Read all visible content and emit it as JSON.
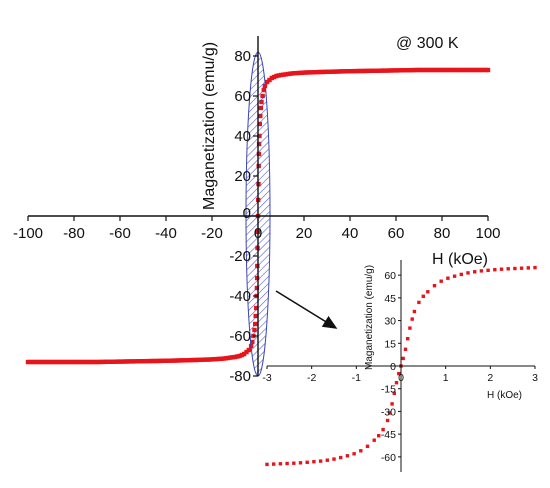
{
  "chart_data": [
    {
      "type": "scatter",
      "role": "main",
      "title": "",
      "annotation": "@ 300 K",
      "xlabel": "H (kOe)",
      "ylabel": "Maganetization (emu/g)",
      "xlim": [
        -100,
        100
      ],
      "ylim": [
        -80,
        90
      ],
      "xticks": [
        -100,
        -80,
        -60,
        -40,
        -20,
        0,
        20,
        40,
        60,
        80,
        100
      ],
      "yticks": [
        -80,
        -60,
        -40,
        -20,
        0,
        20,
        40,
        60,
        80
      ],
      "color": "#e8141c",
      "highlight_color": "#3b45b8",
      "grid": false,
      "series": [
        {
          "x": [
            -100,
            -90,
            -80,
            -70,
            -60,
            -50,
            -40,
            -30,
            -20,
            -15,
            -10,
            -8,
            -6,
            -5,
            -4,
            -3,
            -2.5,
            -2,
            -1.5,
            -1.2,
            -1,
            -0.8,
            -0.6,
            -0.5,
            -0.4,
            -0.3,
            -0.2,
            -0.1,
            0,
            0.1,
            0.2,
            0.3,
            0.4,
            0.5,
            0.6,
            0.8,
            1,
            1.2,
            1.5,
            2,
            2.5,
            3,
            4,
            5,
            6,
            8,
            10,
            15,
            20,
            30,
            40,
            50,
            60,
            70,
            80,
            90,
            100
          ],
          "y": [
            -73,
            -73,
            -73,
            -73,
            -72.8,
            -72.6,
            -72.4,
            -72.1,
            -71.7,
            -71.3,
            -70.5,
            -70,
            -69,
            -68,
            -67,
            -65,
            -63,
            -60,
            -57,
            -54,
            -50,
            -46,
            -40,
            -36,
            -31,
            -25,
            -16,
            -8,
            0,
            8,
            16,
            25,
            31,
            36,
            40,
            46,
            50,
            54,
            57,
            60,
            63,
            65,
            67,
            68,
            69,
            70,
            70.5,
            71.3,
            71.7,
            72.1,
            72.4,
            72.6,
            72.8,
            73,
            73,
            73,
            73
          ]
        }
      ]
    },
    {
      "type": "scatter",
      "role": "inset",
      "title": "",
      "xlabel": "H (kOe)",
      "ylabel": "Maganetization (emu/g)",
      "xlim": [
        -3,
        3
      ],
      "ylim": [
        -70,
        70
      ],
      "xticks": [
        -3,
        -2,
        -1,
        0,
        1,
        2,
        3
      ],
      "yticks": [
        -60,
        -45,
        -30,
        -15,
        0,
        15,
        30,
        45,
        60
      ],
      "color": "#e8141c",
      "series": [
        {
          "x": [
            -3,
            -2.85,
            -2.7,
            -2.55,
            -2.4,
            -2.25,
            -2.1,
            -1.95,
            -1.8,
            -1.65,
            -1.5,
            -1.35,
            -1.2,
            -1.05,
            -0.9,
            -0.75,
            -0.6,
            -0.5,
            -0.4,
            -0.3,
            -0.25,
            -0.2,
            -0.15,
            -0.1,
            -0.05,
            0,
            0.05,
            0.1,
            0.15,
            0.2,
            0.25,
            0.3,
            0.4,
            0.5,
            0.6,
            0.75,
            0.9,
            1.05,
            1.2,
            1.35,
            1.5,
            1.65,
            1.8,
            1.95,
            2.1,
            2.25,
            2.4,
            2.55,
            2.7,
            2.85,
            3
          ],
          "y": [
            -65,
            -64.8,
            -64.6,
            -64.4,
            -64.2,
            -63.9,
            -63.6,
            -63.2,
            -62.8,
            -62.2,
            -61.5,
            -60.5,
            -59.3,
            -58,
            -56,
            -53,
            -49,
            -46,
            -42,
            -36,
            -31,
            -25,
            -18,
            -11,
            -5,
            0,
            5,
            11,
            18,
            25,
            31,
            36,
            42,
            46,
            49,
            53,
            56,
            58,
            59.3,
            60.5,
            61.5,
            62.2,
            62.8,
            63.2,
            63.6,
            63.9,
            64.2,
            64.4,
            64.6,
            64.8,
            65
          ]
        }
      ]
    }
  ]
}
